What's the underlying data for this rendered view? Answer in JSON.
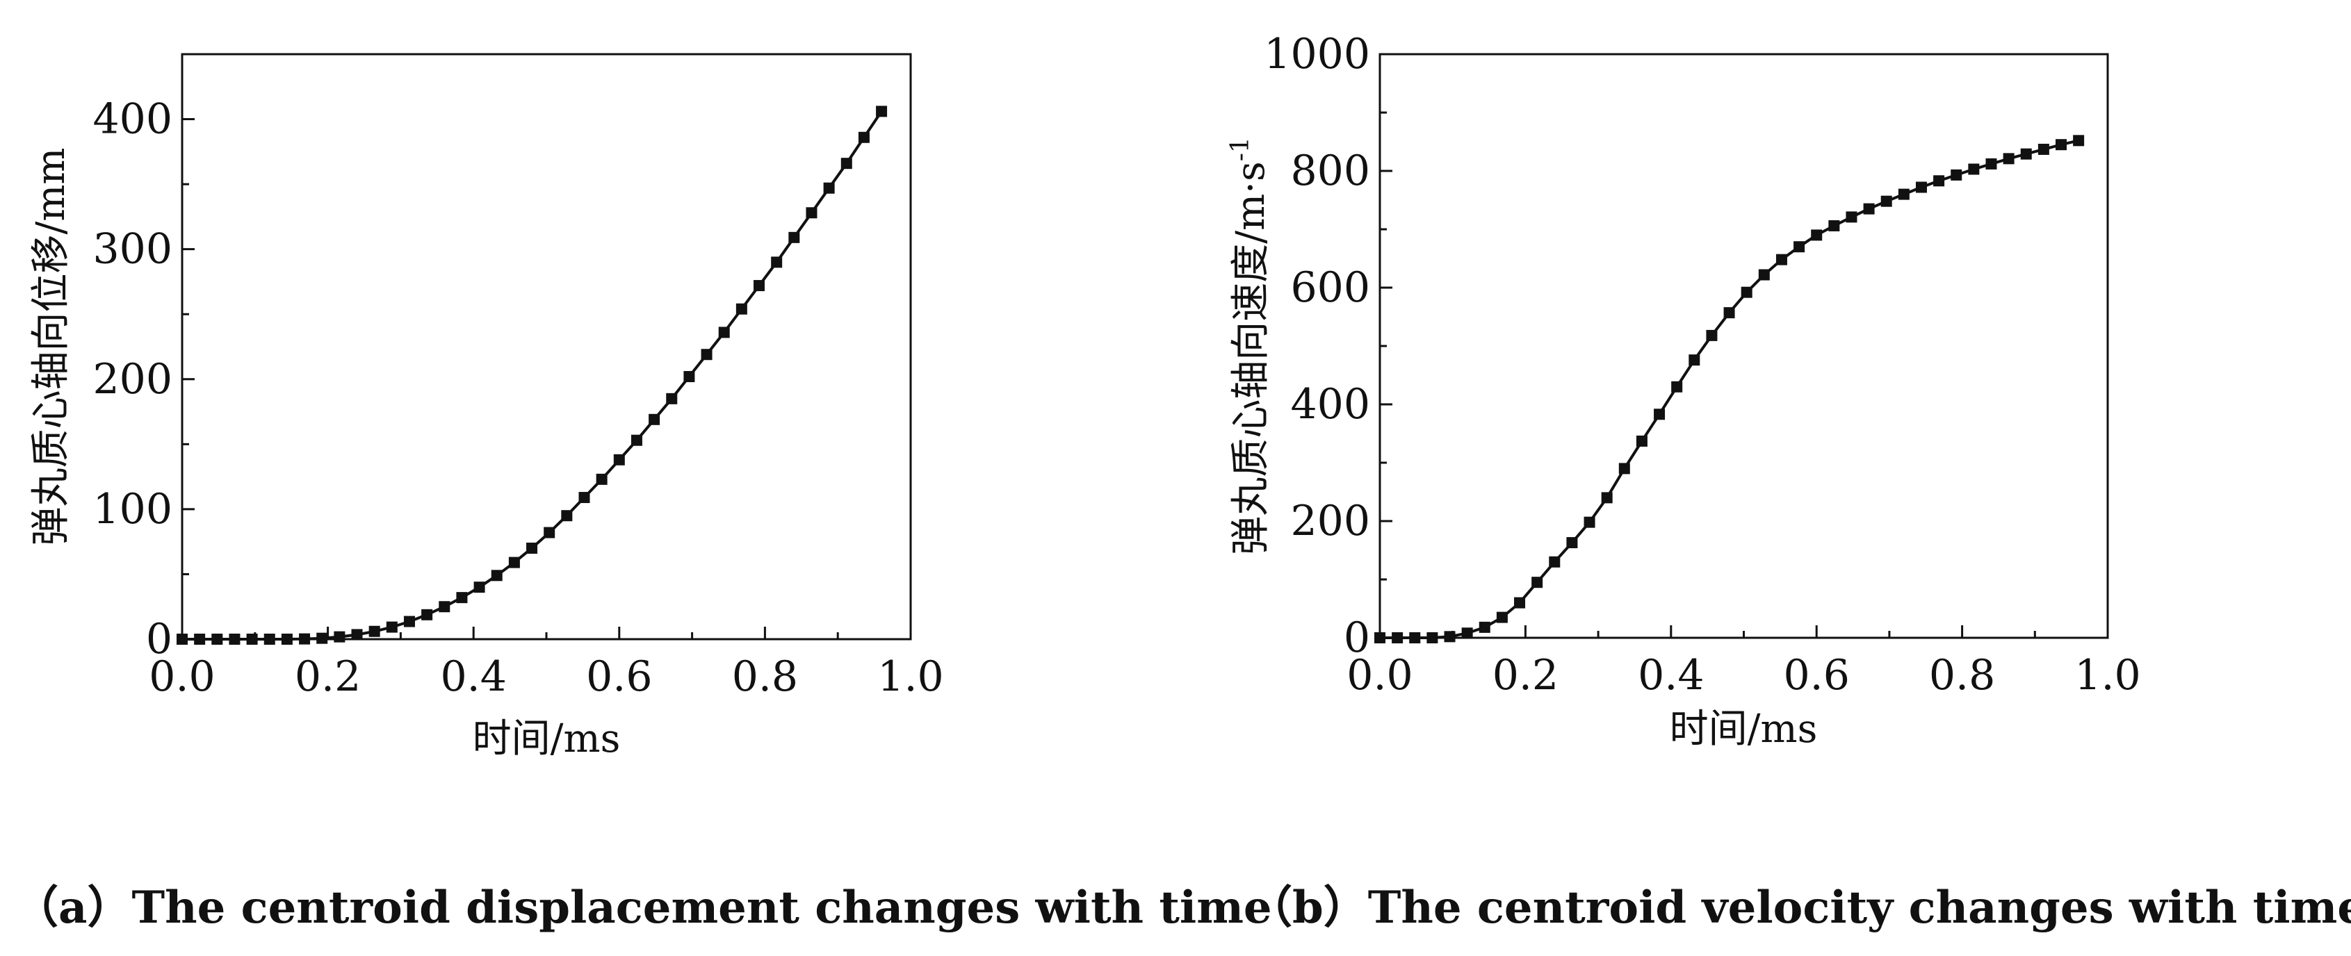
{
  "chart_data": [
    {
      "type": "line",
      "xlabel": "时间/ms",
      "ylabel": "弹丸质心轴向位移/mm",
      "xlim": [
        0,
        1.0
      ],
      "ylim": [
        0,
        450
      ],
      "xticks": [
        "0.0",
        "0.2",
        "0.4",
        "0.6",
        "0.8",
        "1.0"
      ],
      "yticks": [
        "0",
        "100",
        "200",
        "300",
        "400"
      ],
      "series": [
        {
          "name": "displacement",
          "marker": "square",
          "x": [
            0,
            0.024,
            0.048,
            0.072,
            0.096,
            0.12,
            0.144,
            0.168,
            0.192,
            0.216,
            0.24,
            0.264,
            0.288,
            0.312,
            0.336,
            0.36,
            0.384,
            0.408,
            0.432,
            0.456,
            0.48,
            0.504,
            0.528,
            0.552,
            0.576,
            0.6,
            0.624,
            0.648,
            0.672,
            0.696,
            0.72,
            0.744,
            0.768,
            0.792,
            0.816,
            0.84,
            0.864,
            0.888,
            0.912,
            0.936,
            0.96
          ],
          "y": [
            0,
            0,
            0,
            0,
            0,
            0,
            0,
            0.2,
            0.7,
            1.8,
            3.5,
            6,
            9.3,
            13.6,
            18.8,
            25,
            32,
            40,
            49,
            59,
            70,
            82,
            95,
            109,
            123,
            138,
            153,
            169,
            185,
            202,
            219,
            236,
            254,
            272,
            290,
            309,
            328,
            347,
            366,
            386,
            406
          ]
        }
      ],
      "caption": "（a）The centroid displacement changes with time"
    },
    {
      "type": "line",
      "xlabel": "时间/ms",
      "ylabel": "弹丸质心轴向速度/m·s",
      "ylabel_sup": "-1",
      "xlim": [
        0,
        1.0
      ],
      "ylim": [
        0,
        1000
      ],
      "xticks": [
        "0.0",
        "0.2",
        "0.4",
        "0.6",
        "0.8",
        "1.0"
      ],
      "yticks": [
        "0",
        "200",
        "400",
        "600",
        "800",
        "1000"
      ],
      "series": [
        {
          "name": "velocity",
          "marker": "square",
          "x": [
            0,
            0.024,
            0.048,
            0.072,
            0.096,
            0.12,
            0.144,
            0.168,
            0.192,
            0.216,
            0.24,
            0.264,
            0.288,
            0.312,
            0.336,
            0.36,
            0.384,
            0.408,
            0.432,
            0.456,
            0.48,
            0.504,
            0.528,
            0.552,
            0.576,
            0.6,
            0.624,
            0.648,
            0.672,
            0.696,
            0.72,
            0.744,
            0.768,
            0.792,
            0.816,
            0.84,
            0.864,
            0.888,
            0.912,
            0.936,
            0.96
          ],
          "y": [
            0,
            0,
            0,
            0,
            2,
            8,
            18,
            35,
            60,
            95,
            130,
            163,
            198,
            240,
            290,
            337,
            383,
            430,
            476,
            518,
            557,
            592,
            622,
            648,
            670,
            690,
            706,
            721,
            735,
            748,
            760,
            772,
            783,
            793,
            803,
            812,
            821,
            829,
            837,
            845,
            852
          ]
        }
      ],
      "caption": "（b）The centroid velocity changes with time."
    }
  ]
}
